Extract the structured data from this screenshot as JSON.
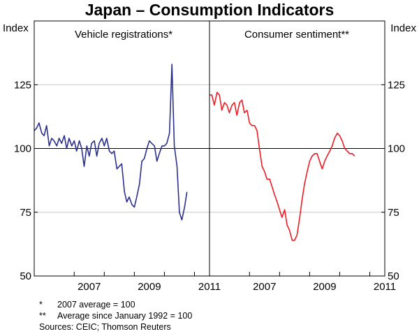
{
  "chart_data": {
    "type": "line",
    "title": "Japan – Consumption Indicators",
    "ylabel_left": "Index",
    "ylabel_right": "Index",
    "ylim": [
      50,
      150
    ],
    "yticks": [
      50,
      75,
      100,
      125
    ],
    "reference_line": 100,
    "grid": true,
    "panels": [
      {
        "title": "Vehicle registrations*",
        "xlim": [
          2005.67,
          2011.5
        ],
        "xtick_labels": [
          "2007",
          "2009",
          "2011"
        ],
        "xtick_label_positions": [
          2007.5,
          2009.5,
          2011.5
        ],
        "xtick_marks": [
          2007,
          2008,
          2009,
          2010,
          2011
        ],
        "series": [
          {
            "name": "Vehicle registrations",
            "color": "#2b2f8f",
            "x": [
              2005.67,
              2005.75,
              2005.83,
              2005.92,
              2006.0,
              2006.08,
              2006.17,
              2006.25,
              2006.33,
              2006.42,
              2006.5,
              2006.58,
              2006.67,
              2006.75,
              2006.83,
              2006.92,
              2007.0,
              2007.08,
              2007.17,
              2007.25,
              2007.33,
              2007.42,
              2007.5,
              2007.58,
              2007.67,
              2007.75,
              2007.83,
              2007.92,
              2008.0,
              2008.08,
              2008.17,
              2008.25,
              2008.33,
              2008.42,
              2008.5,
              2008.58,
              2008.67,
              2008.75,
              2008.83,
              2008.92,
              2009.0,
              2009.08,
              2009.17,
              2009.25,
              2009.33,
              2009.42,
              2009.5,
              2009.58,
              2009.67,
              2009.75,
              2009.83,
              2009.92,
              2010.0,
              2010.08,
              2010.17,
              2010.25,
              2010.33,
              2010.42,
              2010.5,
              2010.58,
              2010.67,
              2010.75
            ],
            "values": [
              107,
              108,
              110,
              106,
              105,
              109,
              101,
              104,
              103,
              101,
              104,
              102,
              105,
              100,
              104,
              101,
              103,
              99,
              103,
              100,
              93,
              101,
              97,
              102,
              103,
              97,
              102,
              104,
              101,
              104,
              99,
              98,
              99,
              92,
              93,
              94,
              83,
              79,
              81,
              78,
              77,
              81,
              86,
              95,
              96,
              100,
              103,
              102,
              101,
              95,
              98,
              101,
              101,
              102,
              106,
              133,
              101,
              93,
              75,
              72,
              77,
              83
            ]
          }
        ]
      },
      {
        "title": "Consumer sentiment**",
        "xlim": [
          2005.67,
          2011.5
        ],
        "xtick_labels": [
          "2007",
          "2009",
          "2011"
        ],
        "xtick_label_positions": [
          2007.5,
          2009.5,
          2011.5
        ],
        "xtick_marks": [
          2007,
          2008,
          2009,
          2010,
          2011
        ],
        "series": [
          {
            "name": "Consumer sentiment",
            "color": "#ee1c25",
            "x": [
              2005.67,
              2005.75,
              2005.83,
              2005.92,
              2006.0,
              2006.08,
              2006.17,
              2006.25,
              2006.33,
              2006.42,
              2006.5,
              2006.58,
              2006.67,
              2006.75,
              2006.83,
              2006.92,
              2007.0,
              2007.08,
              2007.17,
              2007.25,
              2007.33,
              2007.42,
              2007.5,
              2007.58,
              2007.67,
              2007.75,
              2007.83,
              2007.92,
              2008.0,
              2008.08,
              2008.17,
              2008.25,
              2008.33,
              2008.42,
              2008.5,
              2008.58,
              2008.67,
              2008.75,
              2008.83,
              2008.92,
              2009.0,
              2009.08,
              2009.17,
              2009.25,
              2009.33,
              2009.42,
              2009.5,
              2009.58,
              2009.67,
              2009.75,
              2009.83,
              2009.92,
              2010.0,
              2010.08,
              2010.17,
              2010.25,
              2010.33,
              2010.42,
              2010.5
            ],
            "values": [
              121,
              121,
              117,
              122,
              121,
              115,
              118,
              117,
              114,
              117,
              118,
              113,
              118,
              119,
              114,
              115,
              110,
              109,
              109,
              107,
              100,
              93,
              91,
              88,
              88,
              85,
              82,
              79,
              76,
              73,
              76,
              70,
              68,
              64,
              64,
              66,
              73,
              80,
              86,
              91,
              95,
              97,
              98,
              98,
              95,
              92,
              95,
              97,
              99,
              101,
              104,
              106,
              105,
              103,
              100,
              99,
              98,
              98,
              97
            ]
          }
        ]
      }
    ]
  },
  "footnotes": [
    {
      "mark": "*",
      "text": "2007 average = 100"
    },
    {
      "mark": "**",
      "text": "Average since January 1992 = 100"
    }
  ],
  "source": "Sources: CEIC; Thomson Reuters"
}
